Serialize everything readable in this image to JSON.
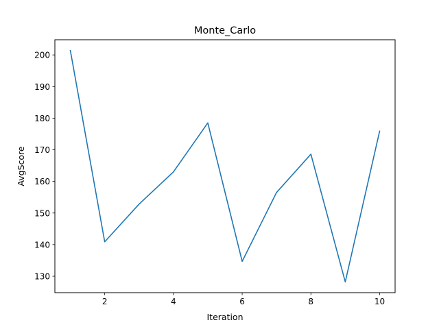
{
  "chart_data": {
    "type": "line",
    "title": "Monte_Carlo",
    "xlabel": "Iteration",
    "ylabel": "AvgScore",
    "xlim": [
      0.55,
      10.45
    ],
    "ylim": [
      124.8,
      204.8
    ],
    "xticks": [
      2,
      4,
      6,
      8,
      10
    ],
    "yticks": [
      130,
      140,
      150,
      160,
      170,
      180,
      190,
      200
    ],
    "grid": false,
    "line_color": "#1f77b4",
    "series": [
      {
        "x": [
          1,
          2,
          3,
          4,
          5,
          6,
          7,
          8,
          9,
          10
        ],
        "values": [
          201.4,
          140.9,
          152.8,
          163.0,
          178.5,
          134.7,
          156.5,
          168.6,
          128.2,
          175.9
        ]
      }
    ]
  }
}
